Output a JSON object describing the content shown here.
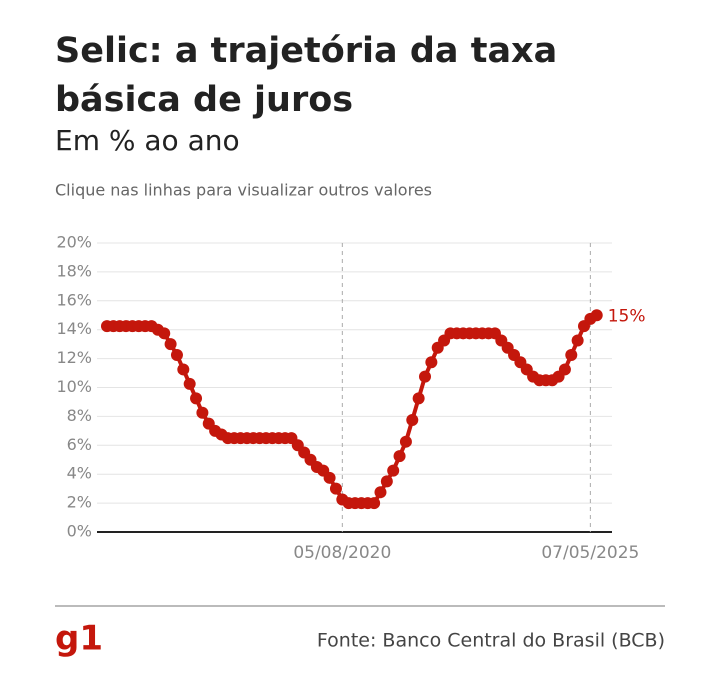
{
  "chart_data": {
    "type": "line",
    "title_lines": [
      "Selic: a trajetória da taxa",
      "básica de juros"
    ],
    "subtitle": "Em % ao ano",
    "note": "Clique nas linhas para visualizar outros valores",
    "source": "Fonte: Banco Central do Brasil (BCB)",
    "logo": "g1",
    "categories": [
      null,
      null,
      null,
      null,
      null,
      null,
      null,
      null,
      null,
      null,
      null,
      null,
      null,
      null,
      null,
      null,
      null,
      null,
      null,
      null,
      null,
      null,
      null,
      null,
      null,
      null,
      null,
      null,
      null,
      null,
      null,
      null,
      null,
      null,
      null,
      null,
      null,
      "05/08/2020",
      null,
      null,
      null,
      null,
      null,
      null,
      null,
      null,
      null,
      null,
      null,
      null,
      null,
      null,
      null,
      null,
      null,
      null,
      null,
      null,
      null,
      null,
      null,
      null,
      null,
      null,
      null,
      null,
      null,
      null,
      null,
      null,
      null,
      null,
      null,
      null,
      null,
      null,
      "07/05/2025",
      null
    ],
    "series": [
      {
        "name": "Selic",
        "color": "#c4170c",
        "values": [
          14.25,
          14.25,
          14.25,
          14.25,
          14.25,
          14.25,
          14.25,
          14.25,
          14,
          13.75,
          13,
          12.25,
          11.25,
          10.25,
          9.25,
          8.25,
          7.5,
          7,
          6.75,
          6.5,
          6.5,
          6.5,
          6.5,
          6.5,
          6.5,
          6.5,
          6.5,
          6.5,
          6.5,
          6.5,
          6,
          5.5,
          5,
          4.5,
          4.25,
          3.75,
          3,
          2.25,
          2,
          2,
          2,
          2,
          2,
          2.75,
          3.5,
          4.25,
          5.25,
          6.25,
          7.75,
          9.25,
          10.75,
          11.75,
          12.75,
          13.25,
          13.75,
          13.75,
          13.75,
          13.75,
          13.75,
          13.75,
          13.75,
          13.75,
          13.25,
          12.75,
          12.25,
          11.75,
          11.25,
          10.75,
          10.5,
          10.5,
          10.5,
          10.75,
          11.25,
          12.25,
          13.25,
          14.25,
          14.75,
          15
        ],
        "value_labels": [
          null,
          null,
          null,
          null,
          null,
          null,
          null,
          null,
          null,
          null,
          null,
          null,
          null,
          null,
          null,
          null,
          null,
          null,
          null,
          null,
          null,
          null,
          null,
          null,
          null,
          null,
          null,
          null,
          null,
          null,
          null,
          null,
          null,
          null,
          null,
          null,
          null,
          null,
          null,
          null,
          null,
          null,
          null,
          null,
          null,
          null,
          null,
          null,
          null,
          null,
          null,
          null,
          null,
          null,
          null,
          null,
          null,
          null,
          null,
          null,
          null,
          null,
          null,
          null,
          null,
          null,
          null,
          null,
          null,
          null,
          null,
          null,
          null,
          null,
          null,
          null,
          null,
          "15%"
        ]
      }
    ],
    "ylim": [
      0,
      20
    ],
    "yticks": [
      {
        "value": 0,
        "label": "0%"
      },
      {
        "value": 2,
        "label": "2%"
      },
      {
        "value": 4,
        "label": "4%"
      },
      {
        "value": 6,
        "label": "6%"
      },
      {
        "value": 8,
        "label": "8%"
      },
      {
        "value": 10,
        "label": "10%"
      },
      {
        "value": 12,
        "label": "12%"
      },
      {
        "value": 14,
        "label": "14%"
      },
      {
        "value": 16,
        "label": "16%"
      },
      {
        "value": 18,
        "label": "18%"
      },
      {
        "value": 20,
        "label": "20%"
      }
    ],
    "grid": true
  }
}
